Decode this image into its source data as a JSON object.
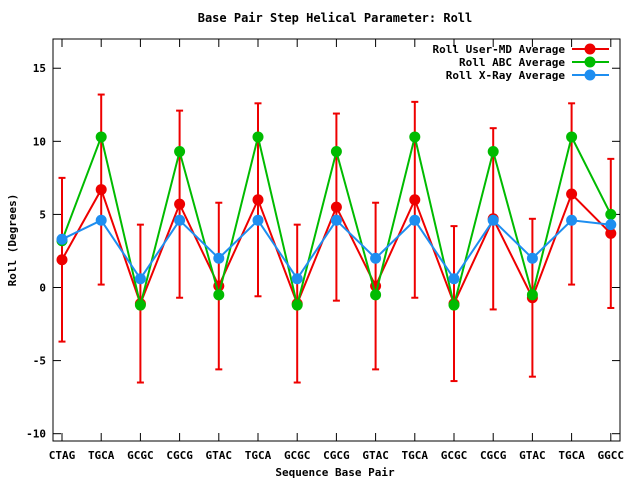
{
  "chart_data": {
    "type": "line",
    "title": "Base Pair Step Helical Parameter: Roll",
    "xlabel": "Sequence Base Pair",
    "ylabel": "Roll (Degrees)",
    "ylim": [
      -10.5,
      17
    ],
    "yticks": [
      -10,
      -5,
      0,
      5,
      10,
      15
    ],
    "categories": [
      "CTAG",
      "TGCA",
      "GCGC",
      "CGCG",
      "GTAC",
      "TGCA",
      "GCGC",
      "CGCG",
      "GTAC",
      "TGCA",
      "GCGC",
      "CGCG",
      "GTAC",
      "TGCA",
      "GGCC"
    ],
    "grid": false,
    "legend_position": "top-right",
    "series": [
      {
        "name": "Roll User-MD Average",
        "color": "#ee0000",
        "values": [
          1.9,
          6.7,
          -1.1,
          5.7,
          0.1,
          6.0,
          -1.1,
          5.5,
          0.1,
          6.0,
          -1.1,
          4.7,
          -0.7,
          6.4,
          3.7
        ],
        "error": [
          5.6,
          6.5,
          5.4,
          6.4,
          5.7,
          6.6,
          5.4,
          6.4,
          5.7,
          6.7,
          5.3,
          6.2,
          5.4,
          6.2,
          5.1
        ]
      },
      {
        "name": "Roll ABC Average",
        "color": "#00bb00",
        "values": [
          3.2,
          10.3,
          -1.2,
          9.3,
          -0.5,
          10.3,
          -1.2,
          9.3,
          -0.5,
          10.3,
          -1.2,
          9.3,
          -0.5,
          10.3,
          5.0
        ]
      },
      {
        "name": "Roll X-Ray Average",
        "color": "#1e8ef0",
        "values": [
          3.3,
          4.6,
          0.6,
          4.6,
          2.0,
          4.6,
          0.6,
          4.6,
          2.0,
          4.6,
          0.6,
          4.6,
          2.0,
          4.6,
          4.3
        ]
      }
    ]
  }
}
